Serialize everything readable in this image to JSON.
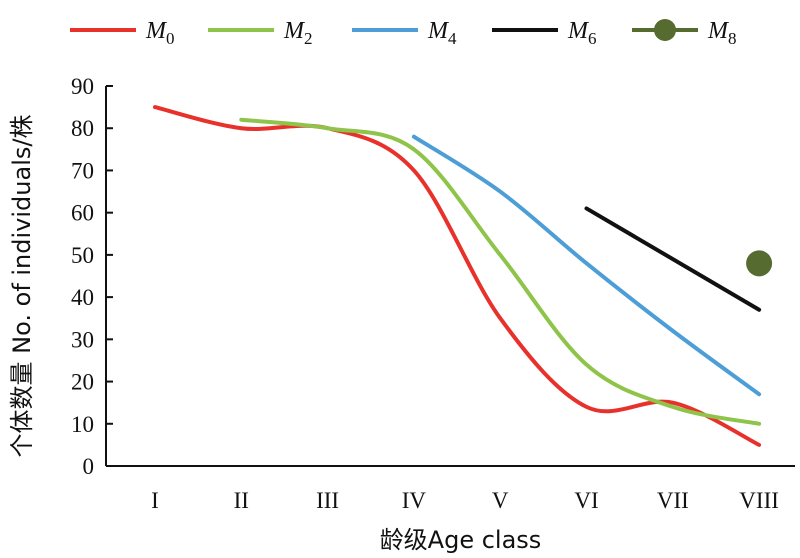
{
  "chart_data": {
    "type": "line",
    "title": "",
    "xlabel": "龄级Age class",
    "ylabel": "个体数量 No. of individuals/株",
    "categories": [
      "I",
      "II",
      "III",
      "IV",
      "V",
      "VI",
      "VII",
      "VIII"
    ],
    "ylim": [
      0,
      90
    ],
    "yticks": [
      0,
      10,
      20,
      30,
      40,
      50,
      60,
      70,
      80,
      90
    ],
    "grid": false,
    "legend_position": "top",
    "series": [
      {
        "name": "M",
        "subscript": "0",
        "color": "#e8312b",
        "marker": false,
        "values": [
          85,
          80,
          80,
          70,
          35,
          14,
          15,
          5
        ]
      },
      {
        "name": "M",
        "subscript": "2",
        "color": "#8ec44a",
        "marker": false,
        "values": [
          null,
          82,
          80,
          75,
          50,
          24,
          14,
          10
        ]
      },
      {
        "name": "M",
        "subscript": "4",
        "color": "#4d9ed6",
        "marker": false,
        "values": [
          null,
          null,
          null,
          78,
          65,
          48,
          32,
          17
        ]
      },
      {
        "name": "M",
        "subscript": "6",
        "color": "#111111",
        "marker": false,
        "values": [
          null,
          null,
          null,
          null,
          null,
          61,
          null,
          37
        ]
      },
      {
        "name": "M",
        "subscript": "8",
        "color": "#556b2f",
        "marker": true,
        "values": [
          null,
          null,
          null,
          null,
          null,
          null,
          null,
          48
        ]
      }
    ]
  }
}
